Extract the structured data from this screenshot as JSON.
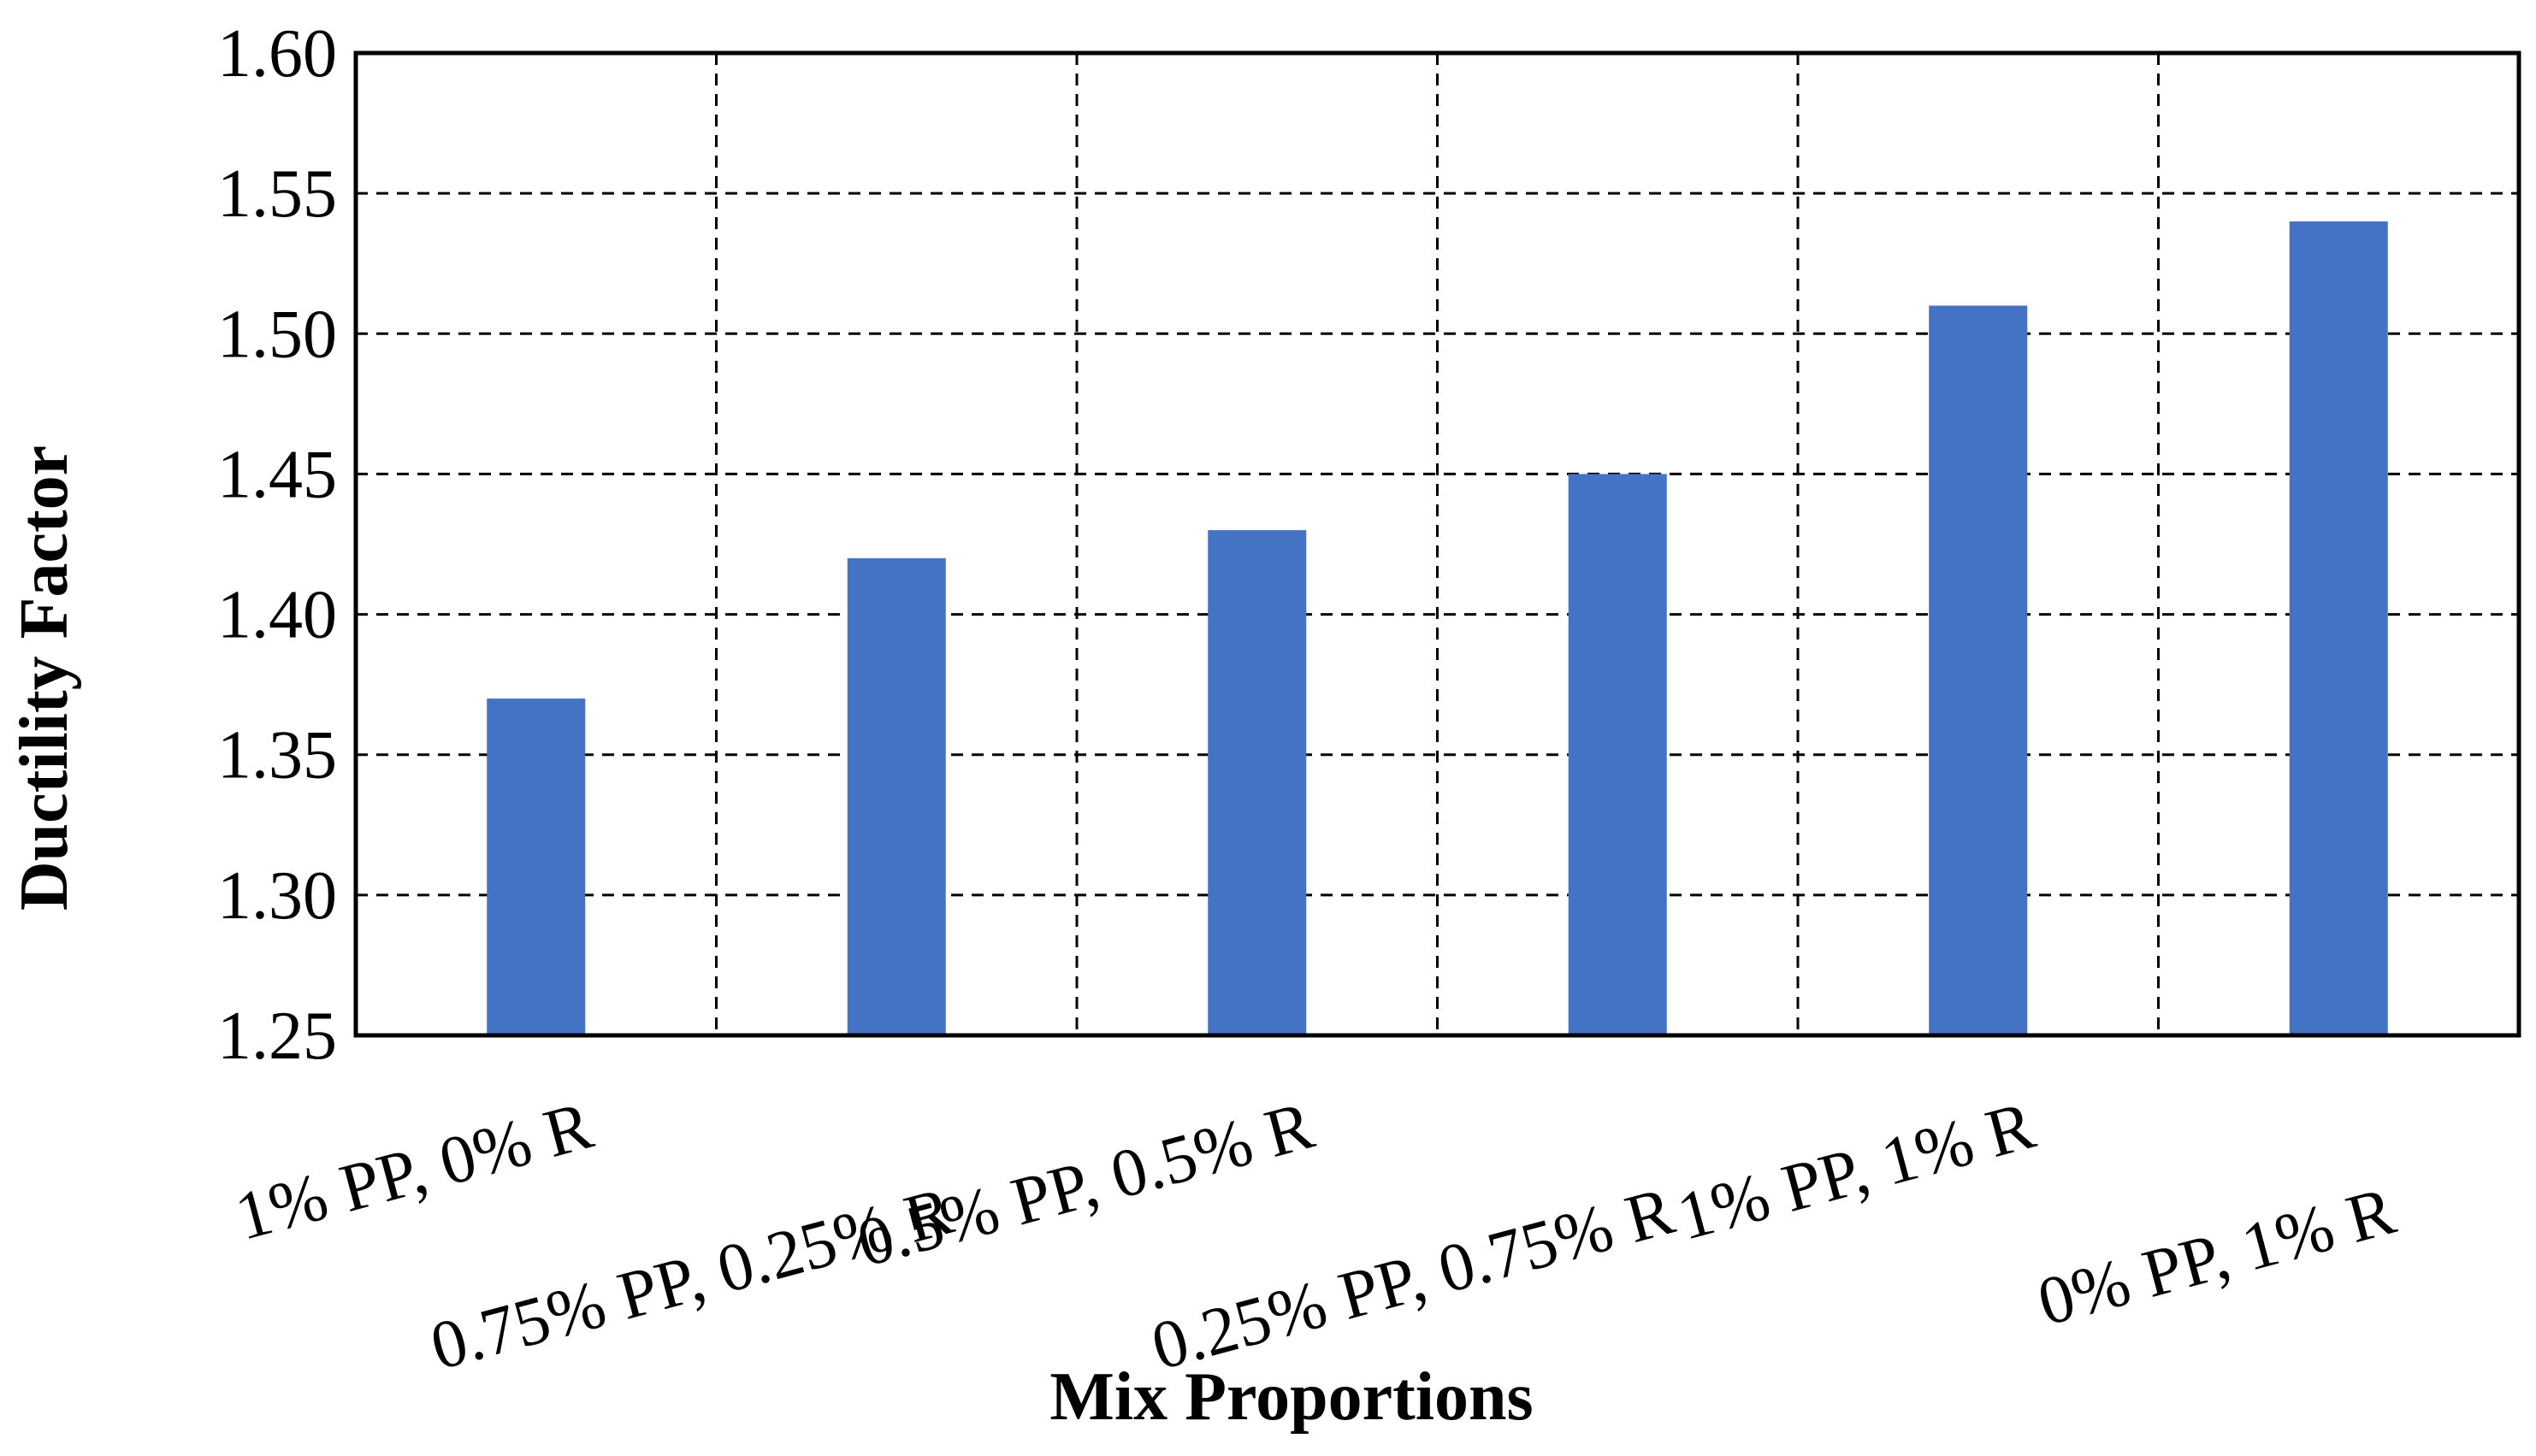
{
  "chart_data": {
    "type": "bar",
    "title": "",
    "xlabel": "Mix Proportions",
    "ylabel": "Ductility Factor",
    "categories": [
      "1% PP, 0% R",
      "0.75% PP, 0.25% R",
      "0.5% PP, 0.5% R",
      "0.25% PP, 0.75% R",
      "1% PP, 1% R",
      "0% PP, 1% R"
    ],
    "series": [
      {
        "values": [
          1.37,
          1.42,
          1.43,
          1.45,
          1.51,
          1.54
        ]
      }
    ],
    "ylim": [
      1.25,
      1.6
    ],
    "yticks": [
      "1.25",
      "1.30",
      "1.35",
      "1.40",
      "1.45",
      "1.50",
      "1.55",
      "1.60"
    ],
    "grid": true,
    "grid_style": "dashed",
    "legend": "none",
    "bar_color": "#4472C4"
  }
}
